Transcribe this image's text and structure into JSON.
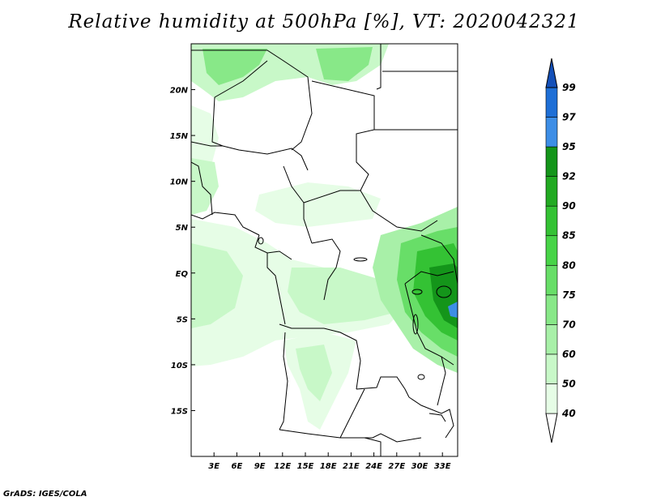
{
  "title": "Relative humidity at 500hPa [%], VT: 2020042321",
  "credit": "GrADS: IGES/COLA",
  "map": {
    "lon_labels": [
      "3E",
      "6E",
      "9E",
      "12E",
      "15E",
      "18E",
      "21E",
      "24E",
      "27E",
      "30E",
      "33E"
    ],
    "lon_values": [
      3,
      6,
      9,
      12,
      15,
      18,
      21,
      24,
      27,
      30,
      33
    ],
    "lat_labels": [
      "20N",
      "15N",
      "10N",
      "5N",
      "EQ",
      "5S",
      "10S",
      "15S"
    ],
    "lat_values": [
      20,
      15,
      10,
      5,
      0,
      -5,
      -10,
      -15
    ],
    "lon_range": [
      0,
      35
    ],
    "lat_range": [
      -20,
      25
    ]
  },
  "colorbar": {
    "levels": [
      "40",
      "50",
      "60",
      "70",
      "75",
      "80",
      "85",
      "90",
      "92",
      "95",
      "97",
      "99"
    ],
    "colors": [
      "#ffffff",
      "#e6fde6",
      "#c8f8c8",
      "#a8f0a8",
      "#88e888",
      "#68de68",
      "#48d448",
      "#34c234",
      "#22aa22",
      "#14951a",
      "#3d8ee6",
      "#1e6fd6",
      "#1450b8"
    ]
  },
  "colors": {
    "land_border": "#000000",
    "humid_light": "#e6fde6",
    "humid_mid": "#a8f0a8",
    "humid_high": "#48d448",
    "humid_max": "#14951a",
    "humid_blue": "#3d8ee6"
  }
}
